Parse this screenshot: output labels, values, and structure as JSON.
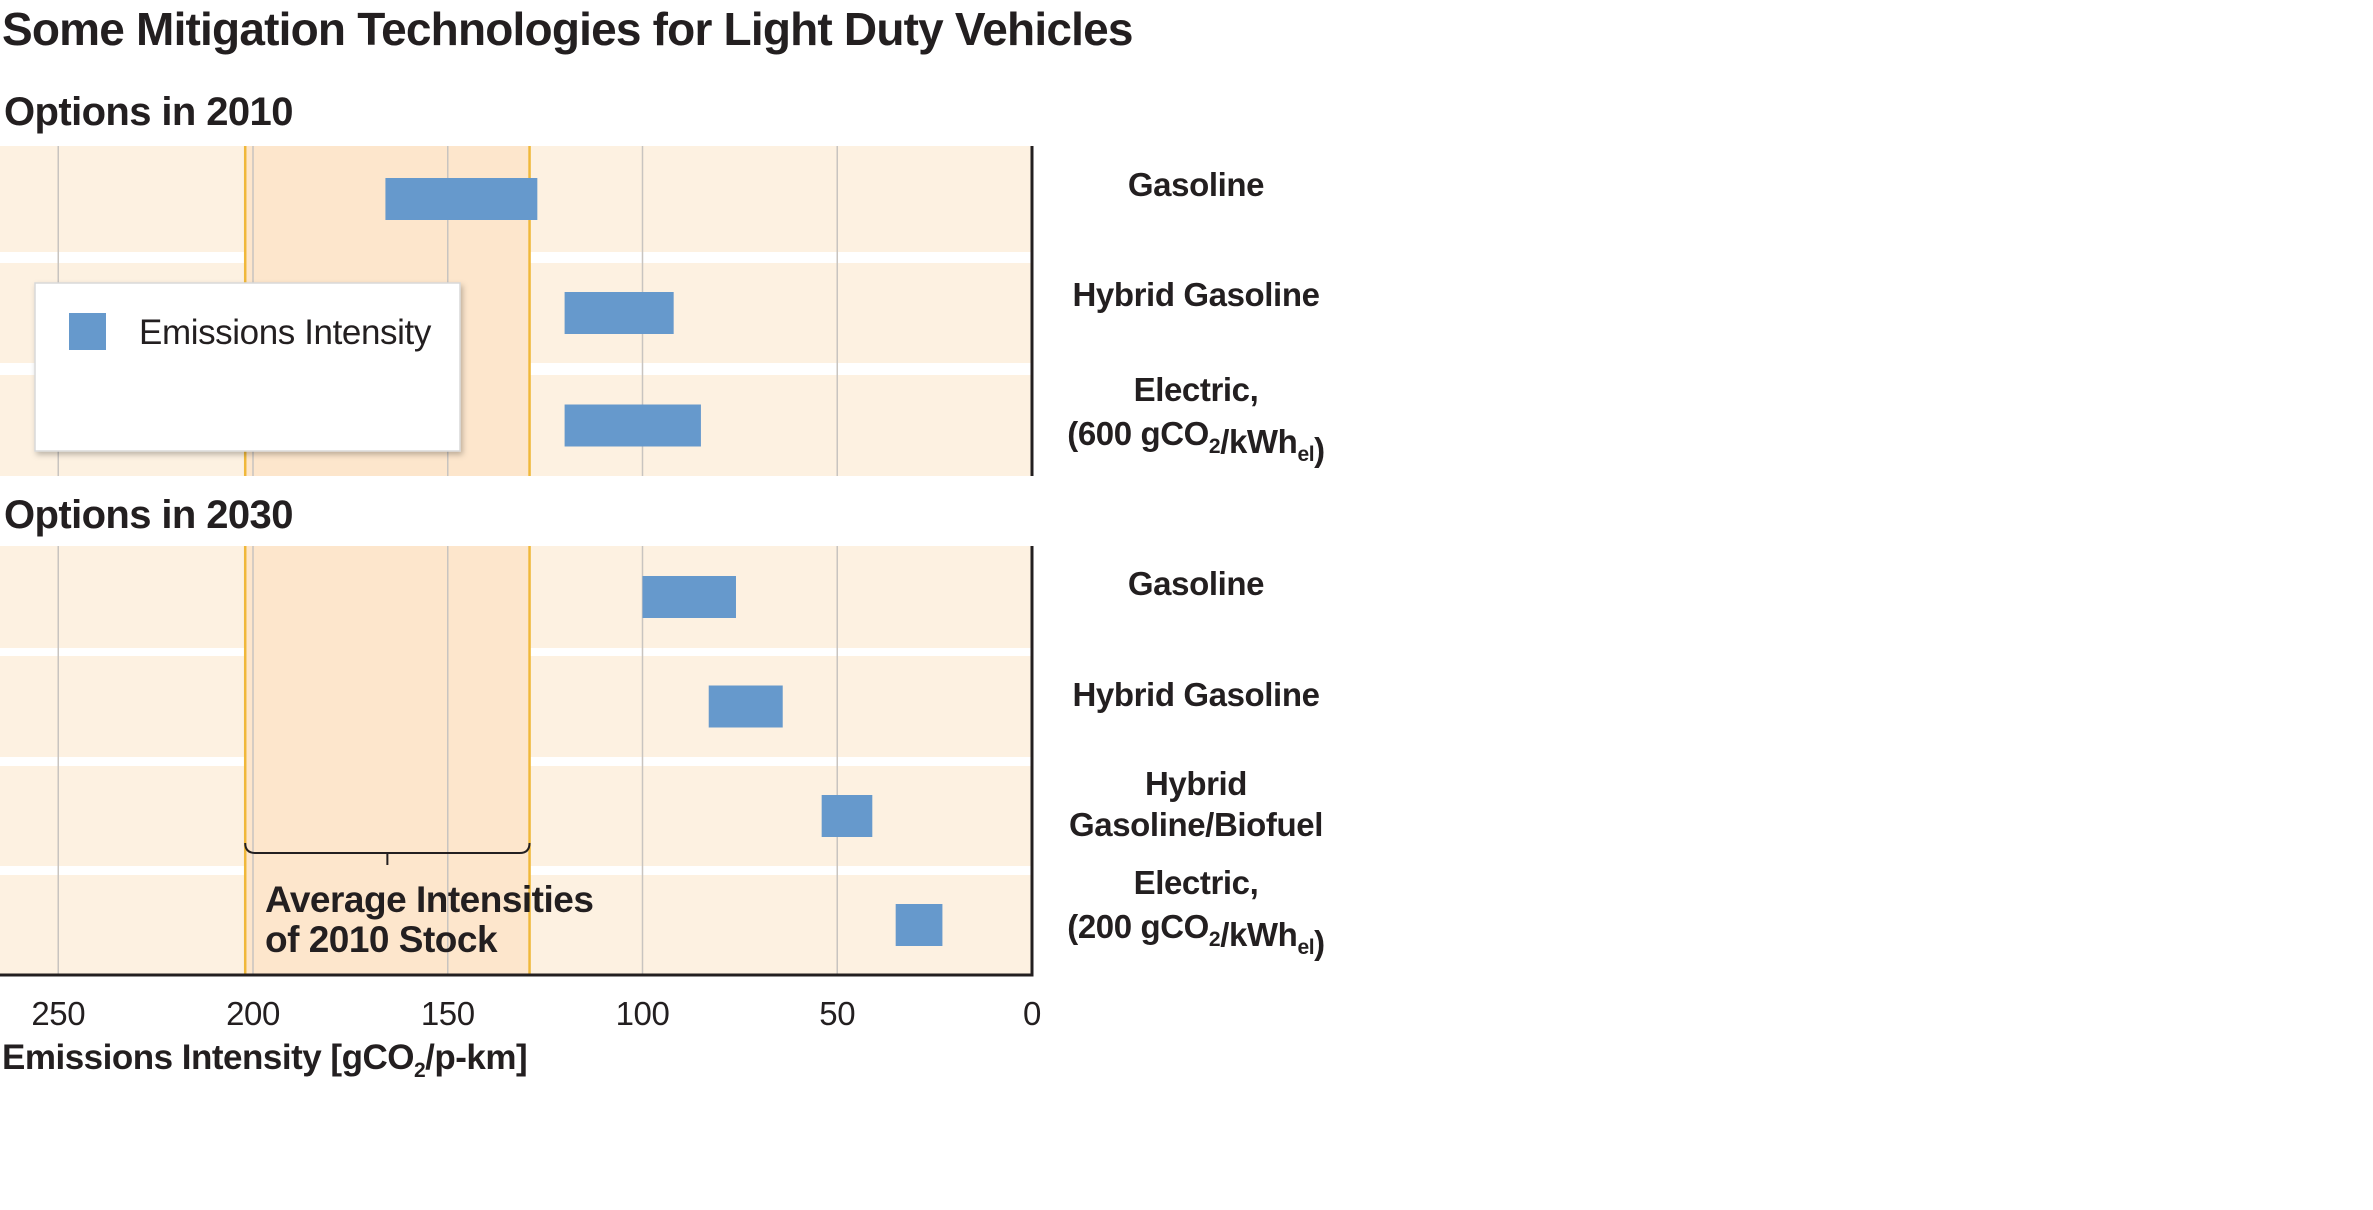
{
  "title": "Some Mitigation Technologies for Light Duty Vehicles",
  "legend": {
    "label": "Emissions Intensity",
    "color": "#6699cc"
  },
  "annotation": {
    "line1": "Average Intensities",
    "line2": "of 2010 Stock"
  },
  "colors": {
    "panel": "#fdf1e1",
    "band": "#fde6cc",
    "bound": "#f0b83a",
    "bar": "#6699cc",
    "grid": "#c8c4c0",
    "axis": "#231f20"
  },
  "chart_data": {
    "type": "bar",
    "orientation": "horizontal",
    "xlabel": "Emissions Intensity [gCO2/p-km]",
    "xlim": [
      265,
      0
    ],
    "x_reversed": true,
    "xticks": [
      250,
      200,
      150,
      100,
      50,
      0
    ],
    "grid": true,
    "legend_position": "inside-left",
    "reference_band": {
      "label": "Average Intensities of 2010 Stock",
      "range": [
        202,
        129
      ]
    },
    "groups": [
      {
        "label": "Options in 2010",
        "rows": [
          {
            "category": "Gasoline",
            "range": [
              166,
              127
            ]
          },
          {
            "category": "Hybrid Gasoline",
            "range": [
              120,
              92
            ]
          },
          {
            "category": "Electric, (600 gCO2/kWhel)",
            "range": [
              120,
              85
            ]
          }
        ]
      },
      {
        "label": "Options in 2030",
        "rows": [
          {
            "category": "Gasoline",
            "range": [
              100,
              76
            ]
          },
          {
            "category": "Hybrid Gasoline",
            "range": [
              83,
              64
            ]
          },
          {
            "category": "Hybrid Gasoline/Biofuel",
            "range": [
              54,
              41
            ]
          },
          {
            "category": "Electric, (200 gCO2/kWhel)",
            "range": [
              35,
              23
            ]
          }
        ]
      }
    ]
  }
}
